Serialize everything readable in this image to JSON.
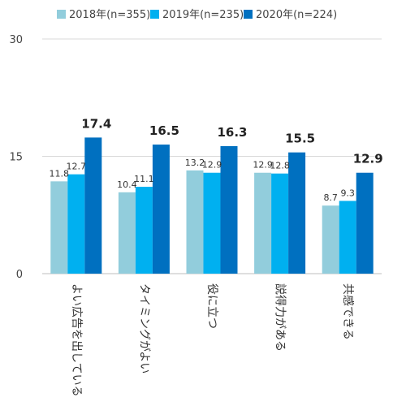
{
  "chart_data": {
    "type": "bar",
    "categories": [
      "よい広告を出している",
      "タイミングがよい",
      "役に立つ",
      "説得力がある",
      "共感できる"
    ],
    "series": [
      {
        "name": "2018年(n=355)",
        "color": "#92cddc",
        "values": [
          11.8,
          10.4,
          13.2,
          12.9,
          8.7
        ]
      },
      {
        "name": "2019年(n=235)",
        "color": "#00b0f0",
        "values": [
          12.7,
          11.1,
          12.9,
          12.8,
          9.3
        ]
      },
      {
        "name": "2020年(n=224)",
        "color": "#0070c0",
        "values": [
          17.4,
          16.5,
          16.3,
          15.5,
          12.9
        ]
      }
    ],
    "ylim": [
      0,
      30
    ],
    "yticks": [
      0,
      15,
      30
    ],
    "grid": true,
    "legend_position": "top",
    "emphasized_series": 2
  }
}
